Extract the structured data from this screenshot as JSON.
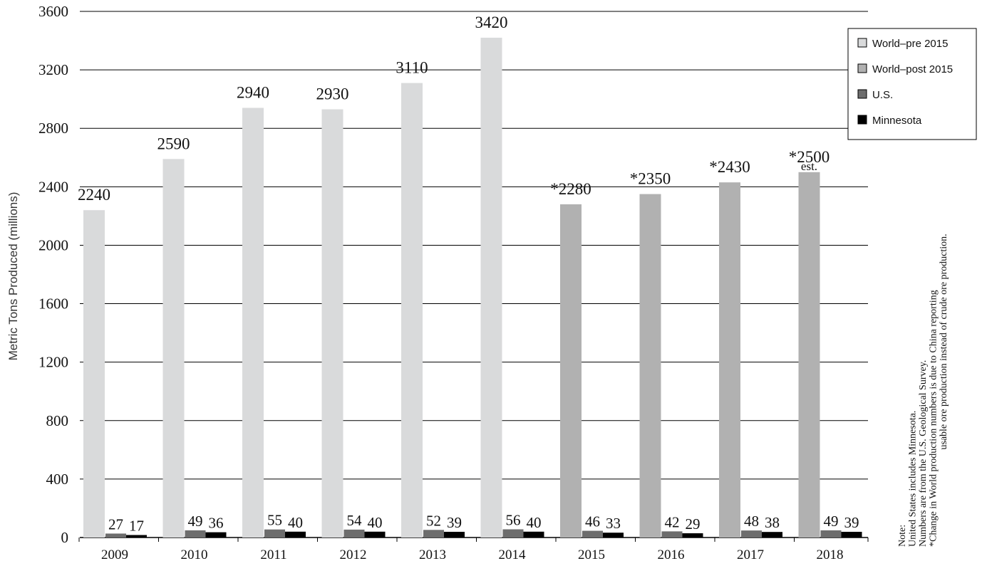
{
  "chart_data": {
    "type": "bar",
    "title": "",
    "ylabel": "Metric Tons Produced (millions)",
    "xlabel": "",
    "ylim": [
      0,
      3600
    ],
    "yticks": [
      0,
      400,
      800,
      1200,
      1600,
      2000,
      2400,
      2800,
      3200,
      3600
    ],
    "grid": true,
    "legend_position": "top-right",
    "categories": [
      "2009",
      "2010",
      "2011",
      "2012",
      "2013",
      "2014",
      "2015",
      "2016",
      "2017",
      "2018"
    ],
    "series": [
      {
        "name": "World–pre 2015",
        "color": "#d9dadb",
        "values": [
          2240,
          2590,
          2940,
          2930,
          3110,
          3420,
          null,
          null,
          null,
          null
        ],
        "labels": [
          "2240",
          "2590",
          "2940",
          "2930",
          "3110",
          "3420",
          "",
          "",
          "",
          ""
        ]
      },
      {
        "name": "World–post 2015",
        "color": "#b1b1b1",
        "values": [
          null,
          null,
          null,
          null,
          null,
          null,
          2280,
          2350,
          2430,
          2500
        ],
        "labels": [
          "",
          "",
          "",
          "",
          "",
          "",
          "*2280",
          "*2350",
          "*2430",
          "*2500"
        ]
      },
      {
        "name": "U.S.",
        "color": "#6d6d6d",
        "values": [
          27,
          49,
          55,
          54,
          52,
          56,
          46,
          42,
          48,
          49
        ],
        "labels": [
          "27",
          "49",
          "55",
          "54",
          "52",
          "56",
          "46",
          "42",
          "48",
          "49"
        ]
      },
      {
        "name": "Minnesota",
        "color": "#000000",
        "values": [
          17,
          36,
          40,
          40,
          39,
          40,
          33,
          29,
          38,
          39
        ],
        "labels": [
          "17",
          "36",
          "40",
          "40",
          "39",
          "40",
          "33",
          "29",
          "38",
          "39"
        ]
      }
    ],
    "annotations": {
      "estimate_label": "est.",
      "notes": [
        "Note:",
        "United States includes Minnesota.",
        "Numbers are from the U.S. Geological Survey.",
        "*Change in World production numbers is due to China reporting",
        "usable ore production instead of crude ore production."
      ]
    }
  }
}
